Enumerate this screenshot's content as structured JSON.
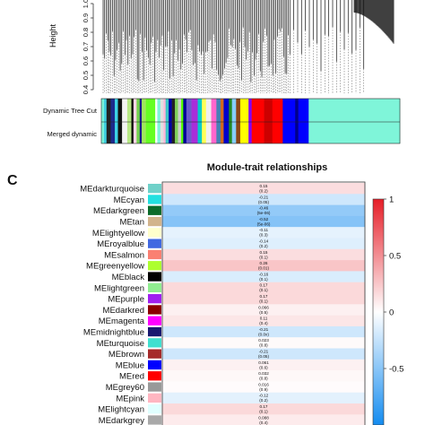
{
  "chart_data": [
    {
      "type": "dendrogram",
      "ylabel": "Height",
      "y_ticks": [
        "1.0",
        "0.9",
        "0.8",
        "0.7",
        "0.6",
        "0.5",
        "0.4"
      ],
      "ylim": [
        0.4,
        1.0
      ],
      "color_bar_labels": [
        "Dynamic Tree Cut",
        "Merged dynamic"
      ],
      "segments": [
        {
          "color": "#7ff5d9",
          "width": 2.5
        },
        {
          "color": "#3fd0e0",
          "width": 2.5
        },
        {
          "color": "#222222",
          "width": 4
        },
        {
          "color": "#1c2a8c",
          "width": 4
        },
        {
          "color": "#3cd3e6",
          "width": 3
        },
        {
          "color": "#111111",
          "width": 4
        },
        {
          "color": "#f4f4f4",
          "width": 5
        },
        {
          "color": "#b8e986",
          "width": 4
        },
        {
          "color": "#000000",
          "width": 2
        },
        {
          "color": "#ffd6e8",
          "width": 3
        },
        {
          "color": "#74d24f",
          "width": 3
        },
        {
          "color": "#1a1a8c",
          "width": 2
        },
        {
          "color": "#a1e85d",
          "width": 4
        },
        {
          "color": "#66ff22",
          "width": 9
        },
        {
          "color": "#ffffff",
          "width": 2
        },
        {
          "color": "#7ff5d9",
          "width": 3
        },
        {
          "color": "#e0e0e0",
          "width": 3
        },
        {
          "color": "#ffb6d9",
          "width": 2
        },
        {
          "color": "#39c5c5",
          "width": 3
        },
        {
          "color": "#0000aa",
          "width": 3
        },
        {
          "color": "#222222",
          "width": 3
        },
        {
          "color": "#7fd15a",
          "width": 3
        },
        {
          "color": "#cccccc",
          "width": 3
        },
        {
          "color": "#55ff00",
          "width": 2
        },
        {
          "color": "#000099",
          "width": 3
        },
        {
          "color": "#6a5acd",
          "width": 5
        },
        {
          "color": "#a82fd9",
          "width": 6
        },
        {
          "color": "#00cccc",
          "width": 4
        },
        {
          "color": "#ffff55",
          "width": 4
        },
        {
          "color": "#f0f0f0",
          "width": 5
        },
        {
          "color": "#ff66cc",
          "width": 5
        },
        {
          "color": "#4682b4",
          "width": 4
        },
        {
          "color": "#d2691e",
          "width": 3
        },
        {
          "color": "#0000cc",
          "width": 5
        },
        {
          "color": "#228b22",
          "width": 3
        },
        {
          "color": "#87cefa",
          "width": 4
        },
        {
          "color": "#8b4513",
          "width": 4
        },
        {
          "color": "#ffff00",
          "width": 8
        },
        {
          "color": "#8000ff",
          "width": 3
        },
        {
          "color": "#ff0000",
          "width": 12
        },
        {
          "color": "#cc0000",
          "width": 8
        },
        {
          "color": "#ff0000",
          "width": 10
        },
        {
          "color": "#0000ff",
          "width": 12
        },
        {
          "color": "#00008b",
          "width": 3
        },
        {
          "color": "#0000ff",
          "width": 10
        },
        {
          "color": "#7ff5d9",
          "width": 88
        }
      ]
    },
    {
      "type": "heatmap",
      "panel_label": "C",
      "title": "Module-trait relationships",
      "colorbar_ticks": [
        1,
        0.5,
        0,
        -0.5
      ],
      "zlim": [
        -1,
        1
      ],
      "rows": [
        {
          "label": "MEdarkturquoise",
          "color": "#6fd1c9",
          "value": 0.15,
          "p": "(0.2)"
        },
        {
          "label": "MEcyan",
          "color": "#22e0e0",
          "value": -0.21,
          "p": "(0.05)"
        },
        {
          "label": "MEdarkgreen",
          "color": "#0b6b2a",
          "value": -0.46,
          "p": "(5e-06)"
        },
        {
          "label": "MEtan",
          "color": "#d2b48c",
          "value": -0.52,
          "p": "(5e-06)"
        },
        {
          "label": "MElightyellow",
          "color": "#ffffcc",
          "value": -0.11,
          "p": "(0.3)"
        },
        {
          "label": "MEroyalblue",
          "color": "#4169e1",
          "value": -0.14,
          "p": "(0.2)"
        },
        {
          "label": "MEsalmon",
          "color": "#fa8072",
          "value": 0.15,
          "p": "(0.1)"
        },
        {
          "label": "MEgreenyellow",
          "color": "#adff2f",
          "value": 0.26,
          "p": "(0.01)"
        },
        {
          "label": "MEblack",
          "color": "#000000",
          "value": -0.16,
          "p": "(0.1)"
        },
        {
          "label": "MElightgreen",
          "color": "#90ee90",
          "value": 0.17,
          "p": "(0.1)"
        },
        {
          "label": "MEpurple",
          "color": "#a020f0",
          "value": 0.17,
          "p": "(0.1)"
        },
        {
          "label": "MEdarkred",
          "color": "#8b0000",
          "value": 0.066,
          "p": "(0.5)"
        },
        {
          "label": "MEmagenta",
          "color": "#ff00ff",
          "value": 0.11,
          "p": "(0.4)"
        },
        {
          "label": "MEmidnightblue",
          "color": "#191970",
          "value": -0.21,
          "p": "(0.0x)"
        },
        {
          "label": "MEturquoise",
          "color": "#40e0d0",
          "value": 0.023,
          "p": "(0.8)"
        },
        {
          "label": "MEbrown",
          "color": "#a52a2a",
          "value": -0.21,
          "p": "(0.05)"
        },
        {
          "label": "MEblue",
          "color": "#0000ff",
          "value": 0.061,
          "p": "(0.6)"
        },
        {
          "label": "MEred",
          "color": "#ff0000",
          "value": 0.032,
          "p": "(0.8)"
        },
        {
          "label": "MEgrey60",
          "color": "#999999",
          "value": 0.016,
          "p": "(0.9)"
        },
        {
          "label": "MEpink",
          "color": "#ffb6c1",
          "value": -0.12,
          "p": "(0.2)"
        },
        {
          "label": "MElightcyan",
          "color": "#e0ffff",
          "value": 0.17,
          "p": "(0.1)"
        },
        {
          "label": "MEdarkgrey",
          "color": "#a9a9a9",
          "value": 0.088,
          "p": "(0.4)"
        }
      ]
    }
  ]
}
